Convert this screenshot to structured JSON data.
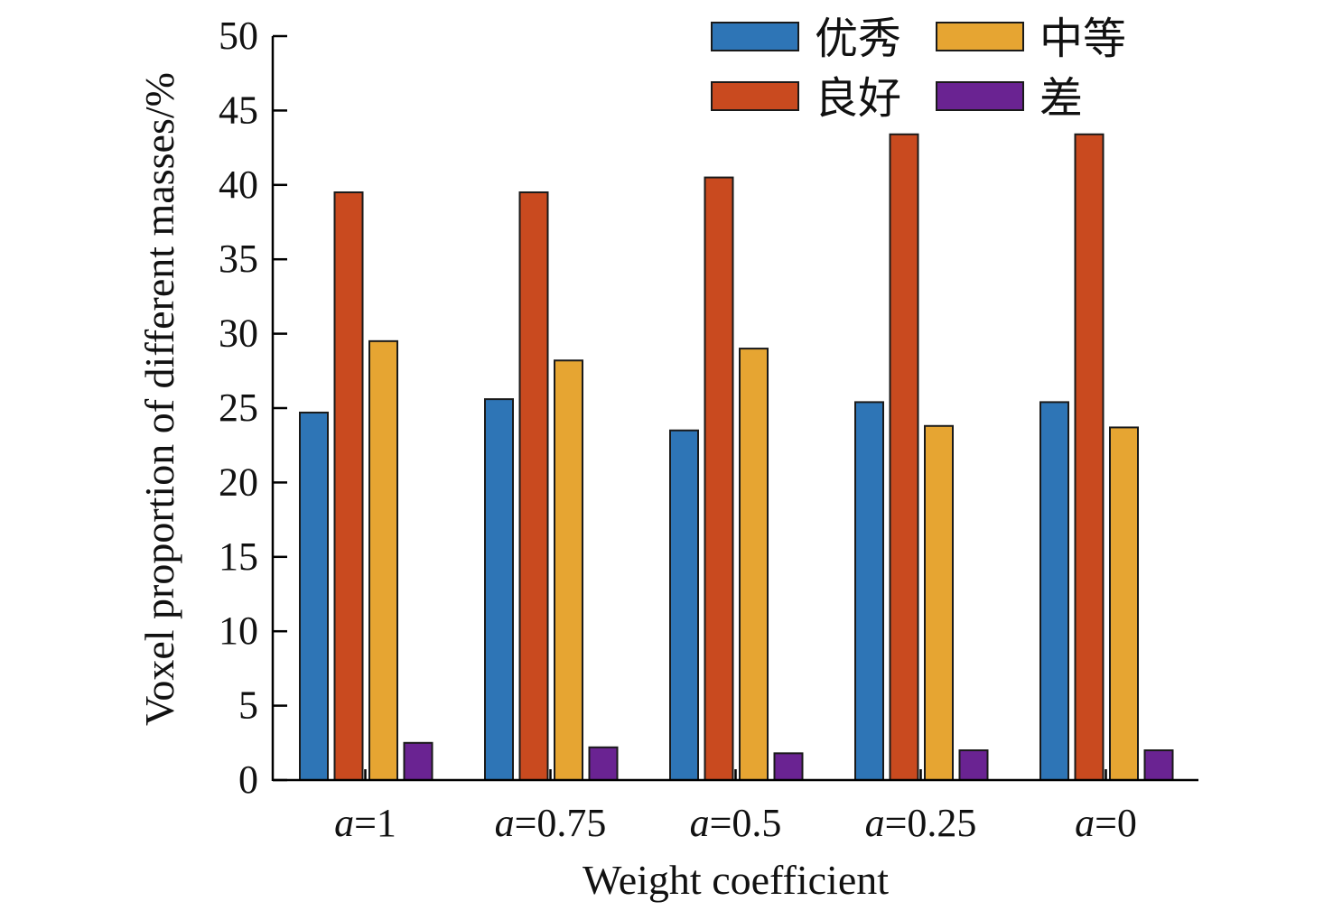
{
  "chart_data": {
    "type": "bar",
    "title": "",
    "xlabel": "Weight coefficient",
    "ylabel": "Voxel proportion of different masses/%",
    "ylim": [
      0,
      50
    ],
    "yticks": [
      0,
      5,
      10,
      15,
      20,
      25,
      30,
      35,
      40,
      45,
      50
    ],
    "ytick_labels": [
      "0",
      "5",
      "10",
      "15",
      "20",
      "25",
      "30",
      "35",
      "40",
      "45",
      "50"
    ],
    "categories": [
      {
        "prefix": "a",
        "suffix": "=1"
      },
      {
        "prefix": "a",
        "suffix": "=0.75"
      },
      {
        "prefix": "a",
        "suffix": "=0.5"
      },
      {
        "prefix": "a",
        "suffix": "=0.25"
      },
      {
        "prefix": "a",
        "suffix": "=0"
      }
    ],
    "series": [
      {
        "name": "优秀",
        "color": "#2e75b6",
        "values": [
          24.7,
          25.6,
          23.5,
          25.4,
          25.4
        ]
      },
      {
        "name": "良好",
        "color": "#c94a1f",
        "values": [
          39.5,
          39.5,
          40.5,
          43.4,
          43.4
        ]
      },
      {
        "name": "中等",
        "color": "#e6a532",
        "values": [
          29.5,
          28.2,
          29.0,
          23.8,
          23.7
        ]
      },
      {
        "name": "差",
        "color": "#6a2392",
        "values": [
          2.5,
          2.2,
          1.8,
          2.0,
          2.0
        ]
      }
    ],
    "grid": false,
    "legend_position": "top-right"
  }
}
